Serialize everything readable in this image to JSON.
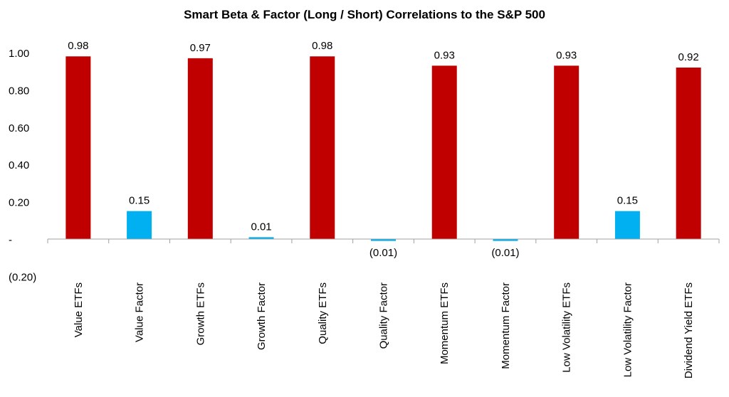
{
  "chart_data": {
    "type": "bar",
    "title": "Smart Beta & Factor (Long / Short) Correlations to the S&P 500",
    "xlabel": "",
    "ylabel": "",
    "ylim": [
      -0.2,
      1.0
    ],
    "y_ticks": [
      {
        "value": 1.0,
        "label": "1.00"
      },
      {
        "value": 0.8,
        "label": "0.80"
      },
      {
        "value": 0.6,
        "label": "0.60"
      },
      {
        "value": 0.4,
        "label": "0.40"
      },
      {
        "value": 0.2,
        "label": "0.20"
      },
      {
        "value": 0.0,
        "label": "-"
      },
      {
        "value": -0.2,
        "label": "(0.20)"
      }
    ],
    "grid": false,
    "legend": "none",
    "categories": [
      "Value ETFs",
      "Value Factor",
      "Growth ETFs",
      "Growth Factor",
      "Quality ETFs",
      "Quality Factor",
      "Momentum ETFs",
      "Momentum Factor",
      "Low Volatility ETFs",
      "Low Volatility Factor",
      "Dividend Yield ETFs"
    ],
    "values": [
      0.98,
      0.15,
      0.97,
      0.01,
      0.98,
      -0.01,
      0.93,
      -0.01,
      0.93,
      0.15,
      0.92
    ],
    "data_labels": [
      "0.98",
      "0.15",
      "0.97",
      "0.01",
      "0.98",
      "(0.01)",
      "0.93",
      "(0.01)",
      "0.93",
      "0.15",
      "0.92"
    ],
    "bar_kinds": [
      "etf",
      "factor",
      "etf",
      "factor",
      "etf",
      "factor",
      "etf",
      "factor",
      "etf",
      "factor",
      "etf"
    ],
    "colors": {
      "etf": "#c00000",
      "factor": "#00b0f0",
      "axis": "#a0a0a0"
    }
  }
}
